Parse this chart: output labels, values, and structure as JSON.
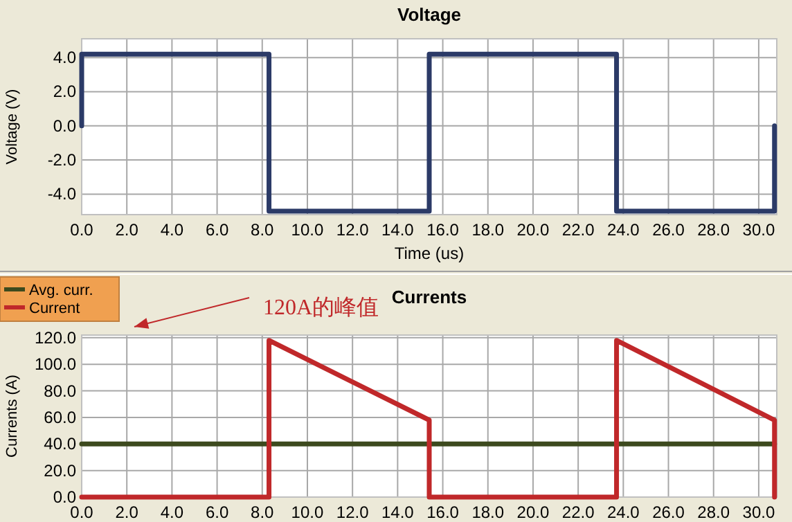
{
  "chart_data": [
    {
      "type": "line",
      "title": "Voltage",
      "xlabel": "Time (us)",
      "ylabel": "Voltage (V)",
      "series": [
        {
          "color": "#2b3a67",
          "x": [
            0,
            0,
            8.3,
            8.3,
            15.4,
            15.4,
            23.7,
            23.7,
            30.7,
            30.7
          ],
          "values": [
            0,
            4.2,
            4.2,
            -5.0,
            -5.0,
            4.2,
            4.2,
            -5.0,
            -5.0,
            0
          ]
        }
      ],
      "xlim": [
        0,
        30.8
      ],
      "xticks": [
        {
          "value": 0,
          "label": "0.0"
        },
        {
          "value": 2,
          "label": "2.0"
        },
        {
          "value": 4,
          "label": "4.0"
        },
        {
          "value": 6,
          "label": "6.0"
        },
        {
          "value": 8,
          "label": "8.0"
        },
        {
          "value": 10,
          "label": "10.0"
        },
        {
          "value": 12,
          "label": "12.0"
        },
        {
          "value": 14,
          "label": "14.0"
        },
        {
          "value": 16,
          "label": "16.0"
        },
        {
          "value": 18,
          "label": "18.0"
        },
        {
          "value": 20,
          "label": "20.0"
        },
        {
          "value": 22,
          "label": "22.0"
        },
        {
          "value": 24,
          "label": "24.0"
        },
        {
          "value": 26,
          "label": "26.0"
        },
        {
          "value": 28,
          "label": "28.0"
        },
        {
          "value": 30,
          "label": "30.0"
        }
      ],
      "ylim": [
        -5.2,
        5.1
      ],
      "yticks": [
        {
          "value": -4,
          "label": "-4.0"
        },
        {
          "value": -2,
          "label": "-2.0"
        },
        {
          "value": 0,
          "label": "0.0"
        },
        {
          "value": 2,
          "label": "2.0"
        },
        {
          "value": 4,
          "label": "4.0"
        }
      ],
      "grid": true,
      "legend": false
    },
    {
      "type": "line",
      "title": "Currents",
      "ylabel": "Currents (A)",
      "series": [
        {
          "name": "Avg. curr.",
          "color": "#3d4a1e",
          "x": [
            0,
            30.7
          ],
          "values": [
            40,
            40
          ]
        },
        {
          "name": "Current",
          "color": "#c0282a",
          "x": [
            0,
            8.3,
            8.3,
            15.4,
            15.4,
            23.7,
            23.7,
            30.7,
            30.7
          ],
          "values": [
            0,
            0,
            118,
            58,
            0,
            0,
            118,
            58,
            0
          ]
        }
      ],
      "xlim": [
        0,
        30.8
      ],
      "xticks": [
        {
          "value": 0,
          "label": "0.0"
        },
        {
          "value": 2,
          "label": "2.0"
        },
        {
          "value": 4,
          "label": "4.0"
        },
        {
          "value": 6,
          "label": "6.0"
        },
        {
          "value": 8,
          "label": "8.0"
        },
        {
          "value": 10,
          "label": "10.0"
        },
        {
          "value": 12,
          "label": "12.0"
        },
        {
          "value": 14,
          "label": "14.0"
        },
        {
          "value": 16,
          "label": "16.0"
        },
        {
          "value": 18,
          "label": "18.0"
        },
        {
          "value": 20,
          "label": "20.0"
        },
        {
          "value": 22,
          "label": "22.0"
        },
        {
          "value": 24,
          "label": "24.0"
        },
        {
          "value": 26,
          "label": "26.0"
        },
        {
          "value": 28,
          "label": "28.0"
        },
        {
          "value": 30,
          "label": "30.0"
        }
      ],
      "ylim": [
        0,
        122
      ],
      "yticks": [
        {
          "value": 0,
          "label": "0.0"
        },
        {
          "value": 20,
          "label": "20.0"
        },
        {
          "value": 40,
          "label": "40.0"
        },
        {
          "value": 60,
          "label": "60.0"
        },
        {
          "value": 80,
          "label": "80.0"
        },
        {
          "value": 100,
          "label": "100.0"
        },
        {
          "value": 120,
          "label": "120.0"
        }
      ],
      "annotations": [
        "120A的峰值"
      ],
      "grid": true,
      "legend": "top left"
    }
  ]
}
